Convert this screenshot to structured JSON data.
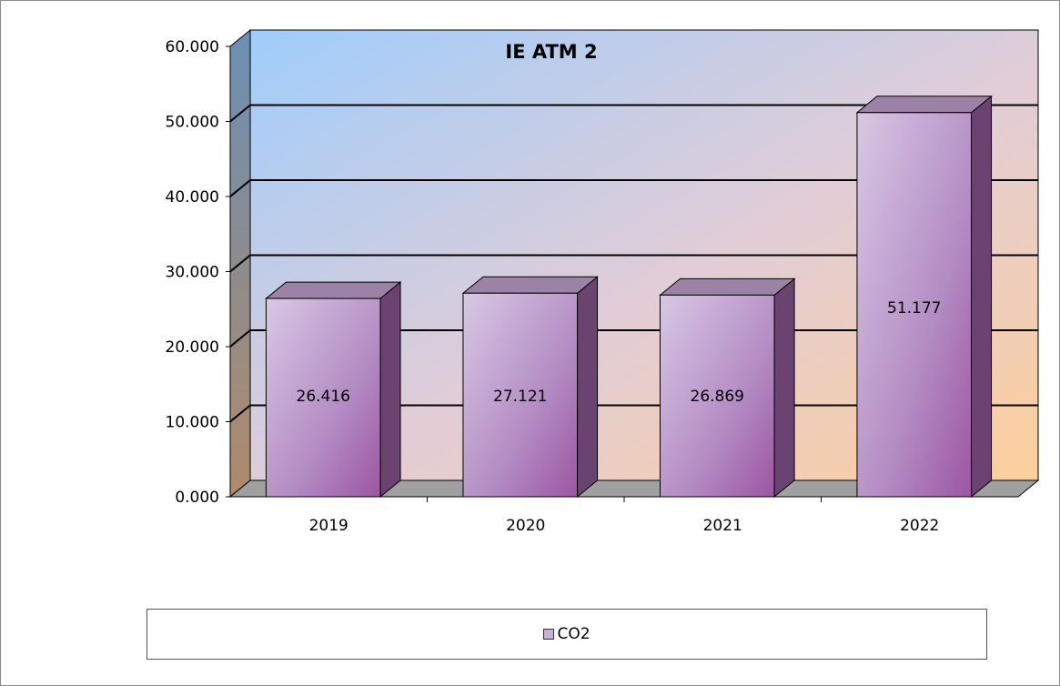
{
  "chart_data": {
    "type": "bar",
    "title": "IE ATM 2",
    "categories": [
      "2019",
      "2020",
      "2021",
      "2022"
    ],
    "series": [
      {
        "name": "CO2",
        "values": [
          26.416,
          27.121,
          26.869,
          51.177
        ],
        "labels": [
          "26.416",
          "27.121",
          "26.869",
          "51.177"
        ]
      }
    ],
    "ylim": [
      0,
      60
    ],
    "yticks": [
      "0.000",
      "10.000",
      "20.000",
      "30.000",
      "40.000",
      "50.000",
      "60.000"
    ],
    "grid": true,
    "legend_position": "bottom",
    "colors": {
      "bar": "#b79ccd",
      "wall_top": "#a8d0fa",
      "wall_bottom": "#f8cfa0"
    }
  }
}
